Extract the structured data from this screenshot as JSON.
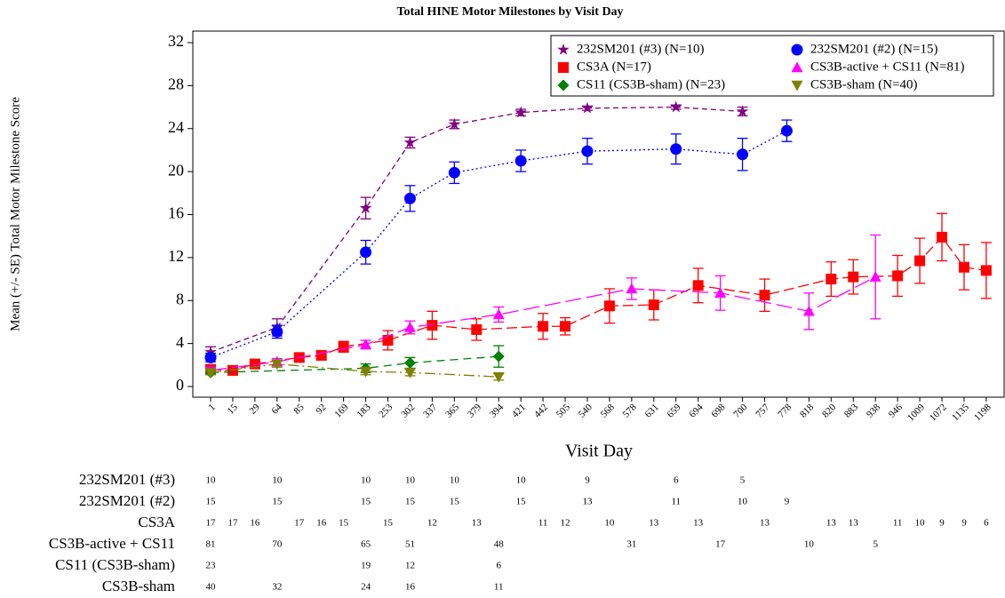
{
  "chart_data": {
    "type": "line",
    "title": "Total HINE Motor Milestones by Visit Day",
    "x_label": "Visit Day",
    "y_label": "Mean (+/- SE) Total Motor Milestone Score",
    "categories": [
      "1",
      "15",
      "29",
      "64",
      "85",
      "92",
      "169",
      "183",
      "253",
      "302",
      "337",
      "365",
      "379",
      "394",
      "421",
      "442",
      "505",
      "540",
      "568",
      "578",
      "631",
      "659",
      "694",
      "698",
      "700",
      "757",
      "778",
      "818",
      "820",
      "883",
      "938",
      "946",
      "1009",
      "1072",
      "1135",
      "1198"
    ],
    "ylim": [
      0,
      32
    ],
    "yticks": [
      0,
      4,
      8,
      12,
      16,
      20,
      24,
      28,
      32
    ],
    "legend": "top-right",
    "series": [
      {
        "name": "232SM201 (#3) (N=10)",
        "color": "#800080",
        "marker": "star",
        "line_style": "dashed",
        "x": [
          "1",
          "64",
          "183",
          "302",
          "365",
          "421",
          "540",
          "659",
          "700"
        ],
        "values": [
          3.2,
          5.5,
          16.6,
          22.7,
          24.4,
          25.5,
          25.9,
          26.0,
          25.6
        ],
        "errors": [
          0.5,
          0.8,
          1.0,
          0.5,
          0.4,
          0.3,
          0.2,
          0.2,
          0.4
        ]
      },
      {
        "name": "232SM201 (#2) (N=15)",
        "color": "#0000ff",
        "marker": "circle",
        "line_style": "dotted",
        "x": [
          "1",
          "64",
          "183",
          "302",
          "365",
          "421",
          "540",
          "659",
          "700",
          "778"
        ],
        "values": [
          2.7,
          5.1,
          12.5,
          17.5,
          19.9,
          21.0,
          21.9,
          22.1,
          21.6,
          23.8
        ],
        "errors": [
          0.4,
          0.6,
          1.1,
          1.2,
          1.0,
          1.0,
          1.2,
          1.4,
          1.5,
          1.0
        ]
      },
      {
        "name": "CS3A (N=17)",
        "color": "#ff0000",
        "marker": "square",
        "line_style": "longdash",
        "x": [
          "1",
          "15",
          "29",
          "85",
          "92",
          "169",
          "253",
          "337",
          "379",
          "442",
          "505",
          "568",
          "631",
          "694",
          "757",
          "820",
          "883",
          "946",
          "1009",
          "1072",
          "1135",
          "1198"
        ],
        "values": [
          1.6,
          1.5,
          2.1,
          2.7,
          2.9,
          3.7,
          4.3,
          5.7,
          5.3,
          5.6,
          5.6,
          7.5,
          7.6,
          9.4,
          8.5,
          10.0,
          10.2,
          10.3,
          11.7,
          13.9,
          11.1,
          10.8
        ],
        "errors": [
          0.3,
          0.2,
          0.2,
          0.3,
          0.4,
          0.5,
          0.9,
          1.3,
          1.0,
          1.2,
          0.8,
          1.6,
          1.4,
          1.6,
          1.5,
          1.6,
          1.6,
          1.9,
          2.1,
          2.2,
          2.1,
          2.6
        ]
      },
      {
        "name": "CS3B-active + CS11 (N=81)",
        "color": "#ff00ff",
        "marker": "triangle",
        "line_style": "verylongdash",
        "x": [
          "1",
          "64",
          "183",
          "302",
          "394",
          "578",
          "698",
          "818",
          "938"
        ],
        "values": [
          1.5,
          2.3,
          3.9,
          5.5,
          6.7,
          9.1,
          8.7,
          7.0,
          10.2
        ],
        "errors": [
          0.3,
          0.3,
          0.4,
          0.6,
          0.7,
          1.0,
          1.6,
          1.7,
          3.9
        ]
      },
      {
        "name": "CS11 (CS3B-sham) (N=23)",
        "color": "#008000",
        "marker": "diamond",
        "line_style": "mediumdash",
        "x": [
          "1",
          "183",
          "302",
          "394"
        ],
        "values": [
          1.3,
          1.7,
          2.2,
          2.8
        ],
        "errors": [
          0.2,
          0.4,
          0.5,
          1.0
        ]
      },
      {
        "name": "CS3B-sham (N=40)",
        "color": "#808000",
        "marker": "triangle-down",
        "line_style": "dashdot",
        "x": [
          "1",
          "64",
          "183",
          "302",
          "394"
        ],
        "values": [
          1.3,
          2.1,
          1.4,
          1.3,
          0.9
        ],
        "errors": [
          0.2,
          0.3,
          0.3,
          0.3,
          0.3
        ]
      }
    ],
    "count_table": [
      {
        "label": "232SM201 (#3)",
        "color": "#800080",
        "x": [
          "1",
          "64",
          "183",
          "302",
          "365",
          "421",
          "540",
          "659",
          "700"
        ],
        "counts": [
          10,
          10,
          10,
          10,
          10,
          10,
          9,
          6,
          5
        ]
      },
      {
        "label": "232SM201 (#2)",
        "color": "#0000ff",
        "x": [
          "1",
          "64",
          "183",
          "302",
          "365",
          "421",
          "540",
          "659",
          "700",
          "778"
        ],
        "counts": [
          15,
          15,
          15,
          15,
          15,
          15,
          13,
          11,
          10,
          9
        ]
      },
      {
        "label": "CS3A",
        "color": "#ff0000",
        "x": [
          "1",
          "15",
          "29",
          "85",
          "92",
          "169",
          "253",
          "337",
          "379",
          "442",
          "505",
          "568",
          "631",
          "694",
          "757",
          "820",
          "883",
          "946",
          "1009",
          "1072",
          "1135",
          "1198"
        ],
        "counts": [
          17,
          17,
          16,
          17,
          16,
          15,
          15,
          12,
          13,
          11,
          12,
          10,
          13,
          13,
          13,
          13,
          13,
          11,
          10,
          9,
          9,
          6
        ]
      },
      {
        "label": "CS3B-active + CS11",
        "color": "#ff00ff",
        "x": [
          "1",
          "64",
          "183",
          "302",
          "394",
          "578",
          "698",
          "818",
          "938"
        ],
        "counts": [
          81,
          70,
          65,
          51,
          48,
          31,
          17,
          10,
          5
        ]
      },
      {
        "label": "CS11 (CS3B-sham)",
        "color": "#008000",
        "x": [
          "1",
          "183",
          "302",
          "394"
        ],
        "counts": [
          23,
          19,
          12,
          6
        ]
      },
      {
        "label": "CS3B-sham",
        "color": "#808000",
        "x": [
          "1",
          "64",
          "183",
          "302",
          "394"
        ],
        "counts": [
          40,
          32,
          24,
          16,
          11
        ]
      }
    ]
  }
}
